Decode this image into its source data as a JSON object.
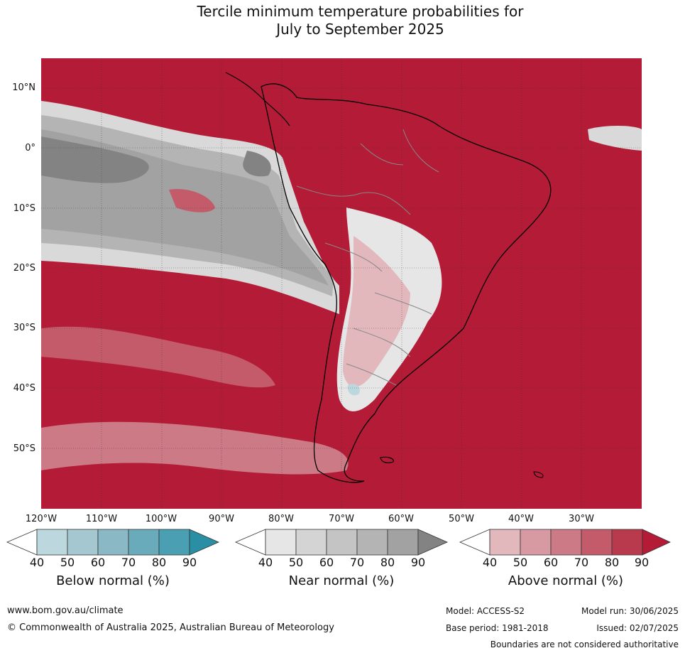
{
  "title": {
    "line1": "Tercile minimum temperature probabilities for",
    "line2": "July to September 2025"
  },
  "axes": {
    "lat_labels": [
      "10°N",
      "0°",
      "10°S",
      "20°S",
      "30°S",
      "40°S",
      "50°S"
    ],
    "lon_labels": [
      "120°W",
      "110°W",
      "100°W",
      "90°W",
      "80°W",
      "70°W",
      "60°W",
      "50°W",
      "40°W",
      "30°W"
    ]
  },
  "colorbars": [
    {
      "name": "Below normal (%)",
      "ticks": [
        "40",
        "50",
        "60",
        "70",
        "80",
        "90"
      ],
      "colors": [
        "#ffffff",
        "#bdd7de",
        "#a5c8d0",
        "#8ab8c4",
        "#6aabbb",
        "#4aa0b2",
        "#2a8fa4"
      ]
    },
    {
      "name": "Near normal (%)",
      "ticks": [
        "40",
        "50",
        "60",
        "70",
        "80",
        "90"
      ],
      "colors": [
        "#ffffff",
        "#e6e6e6",
        "#d4d4d4",
        "#c4c4c4",
        "#b4b4b4",
        "#a2a2a2",
        "#838383"
      ]
    },
    {
      "name": "Above normal (%)",
      "ticks": [
        "40",
        "50",
        "60",
        "70",
        "80",
        "90"
      ],
      "colors": [
        "#ffffff",
        "#e2b8bd",
        "#d79aa2",
        "#cc7a86",
        "#c45b6a",
        "#ba3a4d",
        "#b31b36"
      ]
    }
  ],
  "footer": {
    "website": "www.bom.gov.au/climate",
    "copyright": "© Commonwealth of Australia 2025, Australian Bureau of Meteorology",
    "model": "Model: ACCESS-S2",
    "base_period": "Base period: 1981-2018",
    "model_run": "Model run: 30/06/2025",
    "issued": "Issued: 02/07/2025",
    "disclaimer": "Boundaries are not considered authoritative"
  }
}
